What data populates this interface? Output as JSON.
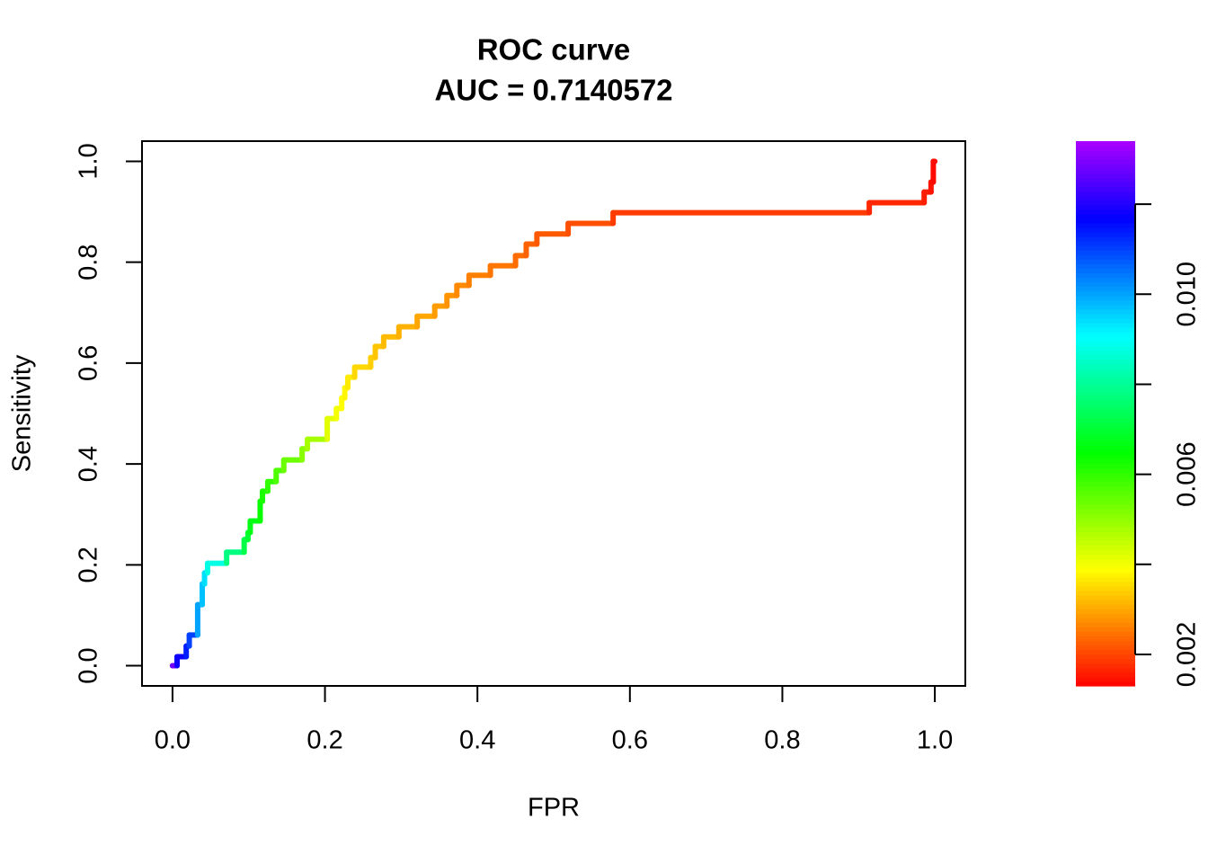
{
  "chart_data": {
    "type": "line",
    "title": "ROC curve",
    "subtitle": "AUC = 0.7140572",
    "x_label": "FPR",
    "y_label": "Sensitivity",
    "xlim": [
      -0.04,
      1.04
    ],
    "ylim": [
      -0.04,
      1.04
    ],
    "xticks": [
      {
        "value": 0,
        "label": "0.0"
      },
      0.2,
      0.4,
      0.6,
      0.8,
      {
        "value": 1,
        "label": "1.0"
      }
    ],
    "yticks": [
      {
        "value": 0,
        "label": "0.0"
      },
      0.2,
      0.4,
      0.6,
      0.8,
      {
        "value": 1,
        "label": "1.0"
      }
    ],
    "colormap": "rainbow",
    "colorbar": {
      "lim": [
        0.0013,
        0.0134
      ],
      "ticks": [
        0.002,
        {
          "value": 0.004,
          "label": null
        },
        0.006,
        {
          "value": 0.008,
          "label": null
        },
        0.01,
        {
          "value": 0.012,
          "label": null
        }
      ]
    },
    "series": [
      {
        "x": [
          0,
          0.006,
          0.006,
          0.018,
          0.018,
          0.022,
          0.022,
          0.033,
          0.033,
          0.039,
          0.039,
          0.042,
          0.042,
          0.046,
          0.046,
          0.071,
          0.071,
          0.094,
          0.094,
          0.099,
          0.099,
          0.102,
          0.102,
          0.115,
          0.115,
          0.118,
          0.118,
          0.125,
          0.125,
          0.136,
          0.136,
          0.146,
          0.146,
          0.17,
          0.17,
          0.177,
          0.177,
          0.203,
          0.203,
          0.215,
          0.215,
          0.222,
          0.222,
          0.226,
          0.226,
          0.23,
          0.23,
          0.239,
          0.239,
          0.26,
          0.26,
          0.266,
          0.266,
          0.277,
          0.277,
          0.297,
          0.297,
          0.321,
          0.321,
          0.344,
          0.344,
          0.36,
          0.36,
          0.373,
          0.373,
          0.389,
          0.389,
          0.417,
          0.417,
          0.45,
          0.45,
          0.464,
          0.464,
          0.478,
          0.478,
          0.519,
          0.519,
          0.578,
          0.578,
          0.914,
          0.914,
          0.986,
          0.986,
          0.995,
          0.995,
          0.998,
          0.998,
          1.0
        ],
        "values": [
          0,
          0,
          0.018,
          0.018,
          0.039,
          0.039,
          0.061,
          0.061,
          0.121,
          0.121,
          0.162,
          0.162,
          0.184,
          0.184,
          0.203,
          0.203,
          0.225,
          0.225,
          0.25,
          0.25,
          0.264,
          0.264,
          0.287,
          0.287,
          0.326,
          0.326,
          0.346,
          0.346,
          0.365,
          0.365,
          0.387,
          0.387,
          0.408,
          0.408,
          0.43,
          0.43,
          0.449,
          0.449,
          0.49,
          0.49,
          0.51,
          0.51,
          0.531,
          0.531,
          0.551,
          0.551,
          0.572,
          0.572,
          0.592,
          0.592,
          0.611,
          0.611,
          0.633,
          0.633,
          0.652,
          0.652,
          0.672,
          0.672,
          0.693,
          0.693,
          0.713,
          0.713,
          0.734,
          0.734,
          0.754,
          0.754,
          0.774,
          0.774,
          0.793,
          0.793,
          0.813,
          0.813,
          0.836,
          0.836,
          0.856,
          0.856,
          0.877,
          0.877,
          0.898,
          0.898,
          0.918,
          0.918,
          0.939,
          0.939,
          0.959,
          0.959,
          1.0,
          1.0
        ],
        "thresholds": [
          0.0128,
          0.0128,
          0.0118,
          0.0118,
          0.0114,
          0.0114,
          0.011,
          0.011,
          0.01,
          0.01,
          0.0097,
          0.0097,
          0.0094,
          0.0094,
          0.0088,
          0.0088,
          0.0078,
          0.0078,
          0.0072,
          0.0072,
          0.007,
          0.007,
          0.0067,
          0.0067,
          0.0064,
          0.0064,
          0.0062,
          0.0062,
          0.006,
          0.006,
          0.0057,
          0.0057,
          0.0054,
          0.0054,
          0.0051,
          0.0051,
          0.0048,
          0.0048,
          0.0042,
          0.0042,
          0.004,
          0.004,
          0.0039,
          0.0039,
          0.0038,
          0.0038,
          0.0037,
          0.0037,
          0.0035,
          0.0035,
          0.0034,
          0.0034,
          0.0033,
          0.0033,
          0.0032,
          0.0032,
          0.0031,
          0.0031,
          0.003,
          0.003,
          0.0029,
          0.0029,
          0.0028,
          0.0028,
          0.0027,
          0.0027,
          0.0026,
          0.0026,
          0.0025,
          0.0025,
          0.0024,
          0.0024,
          0.0023,
          0.0023,
          0.0022,
          0.0022,
          0.0021,
          0.0021,
          0.0019,
          0.0019,
          0.0017,
          0.0017,
          0.0016,
          0.0016,
          0.0015,
          0.0015,
          0.0014,
          0.0014
        ]
      }
    ]
  }
}
